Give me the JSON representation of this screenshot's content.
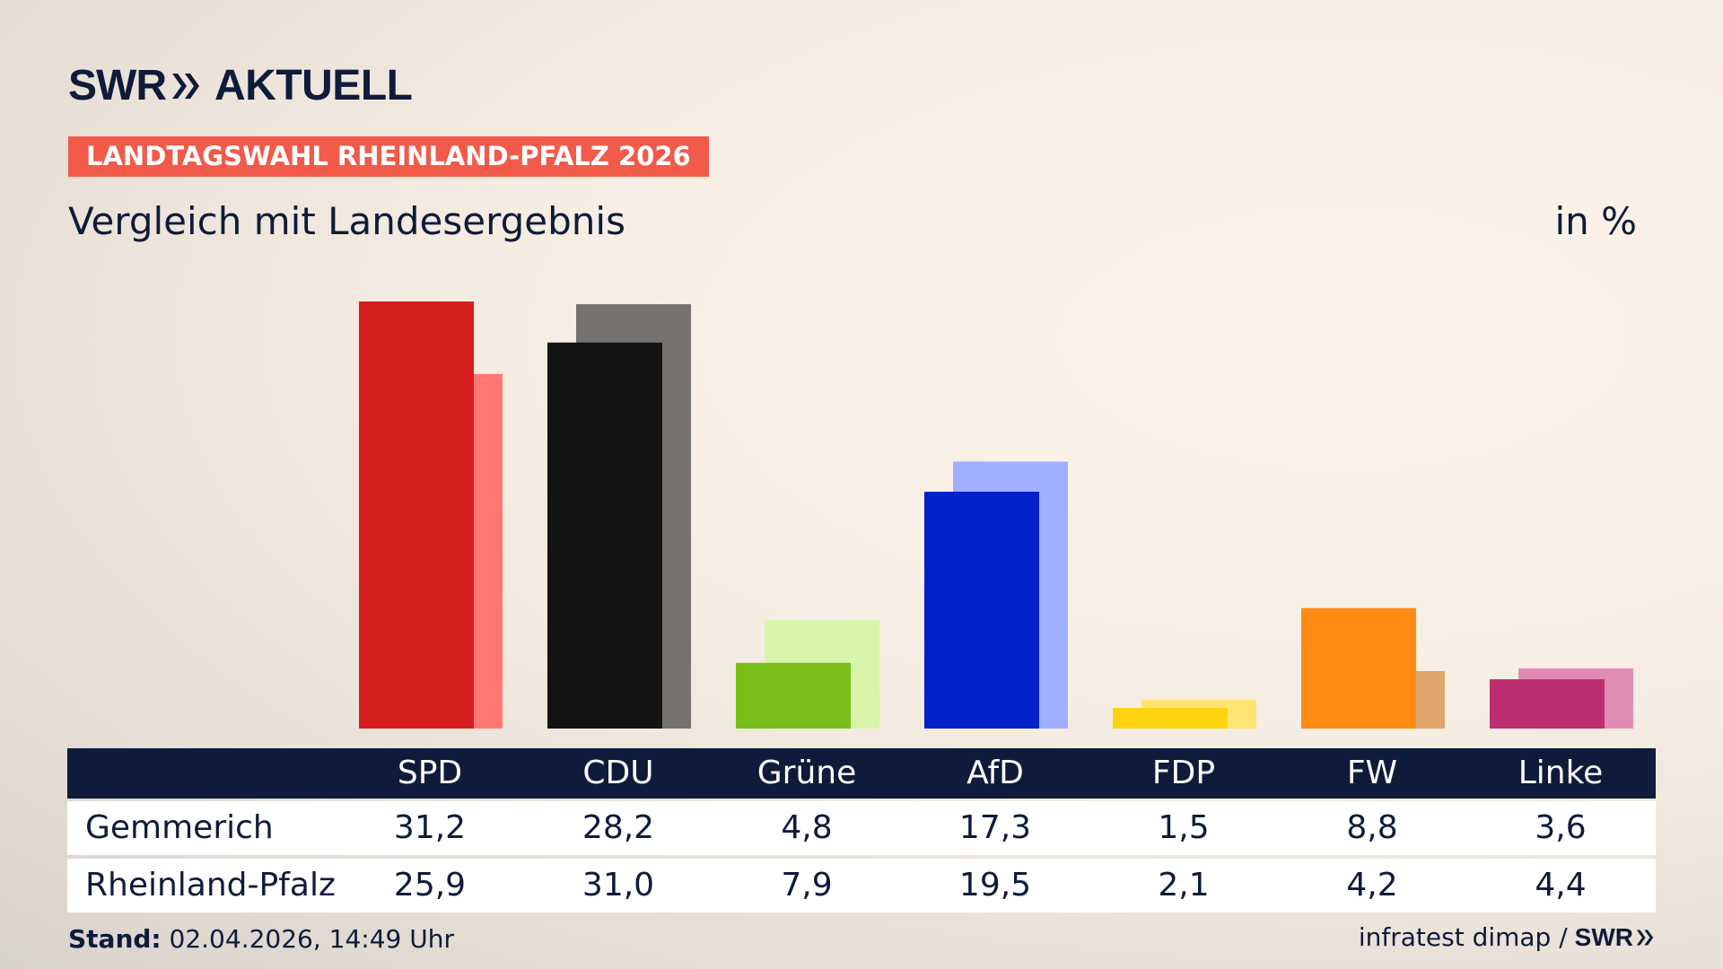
{
  "header": {
    "logo_text": "SWR",
    "brand_text": "AKTUELL",
    "banner": "LANDTAGSWAHL RHEINLAND-PFALZ 2026",
    "subtitle": "Vergleich mit Landesergebnis",
    "unit": "in %"
  },
  "colors": {
    "navy": "#0f1b3a",
    "banner": "#f25a4a"
  },
  "chart_data": {
    "type": "bar",
    "categories": [
      "SPD",
      "CDU",
      "Grüne",
      "AfD",
      "FDP",
      "FW",
      "Linke"
    ],
    "series": [
      {
        "values": [
          31.2,
          28.2,
          4.8,
          17.3,
          1.5,
          8.8,
          3.6
        ]
      },
      {
        "values": [
          25.9,
          31.0,
          7.9,
          19.5,
          2.1,
          4.2,
          4.4
        ]
      }
    ],
    "colors_front": [
      "#d71f1f",
      "#141414",
      "#7abe1a",
      "#0020c8",
      "#ffd30f",
      "#ff8b14",
      "#bd2e72"
    ],
    "colors_back": [
      "#ff7770",
      "#757270",
      "#d7f5ab",
      "#a0aeff",
      "#ffe474",
      "#e0a56c",
      "#e08bb4"
    ],
    "ylim": [
      0,
      31.2
    ],
    "grid": false
  },
  "table": {
    "headers": [
      "SPD",
      "CDU",
      "Grüne",
      "AfD",
      "FDP",
      "FW",
      "Linke"
    ],
    "rows": [
      {
        "label": "Gemmerich",
        "values": [
          "31,2",
          "28,2",
          "4,8",
          "17,3",
          "1,5",
          "8,8",
          "3,6"
        ]
      },
      {
        "label": "Rheinland-Pfalz",
        "values": [
          "25,9",
          "31,0",
          "7,9",
          "19,5",
          "2,1",
          "4,2",
          "4,4"
        ]
      }
    ]
  },
  "footer": {
    "stand_label": "Stand:",
    "stand_value": "02.04.2026, 14:49 Uhr",
    "source": "infratest dimap /",
    "source_logo": "SWR"
  }
}
